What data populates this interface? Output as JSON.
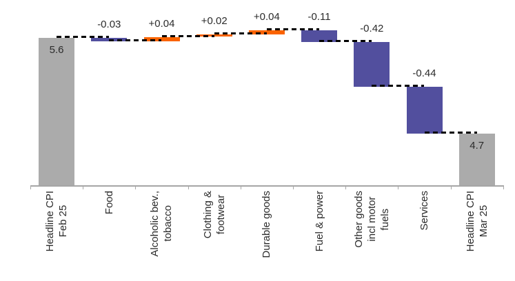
{
  "chart_data": {
    "type": "bar",
    "subtype": "waterfall",
    "title": "",
    "xlabel": "",
    "ylabel": "",
    "legend": false,
    "gridlines": false,
    "y_axis_visible": false,
    "start_value": 5.6,
    "end_value": 4.7,
    "categories": [
      {
        "label": "Headline CPI\nFeb 25",
        "role": "total",
        "value": 5.6,
        "display": "5.6"
      },
      {
        "label": "Food",
        "role": "delta",
        "value": -0.03,
        "display": "-0.03"
      },
      {
        "label": "Alcoholic bev.,\ntobacco",
        "role": "delta",
        "value": 0.04,
        "display": "+0.04"
      },
      {
        "label": "Clothing &\nfootwear",
        "role": "delta",
        "value": 0.02,
        "display": "+0.02"
      },
      {
        "label": "Durable goods",
        "role": "delta",
        "value": 0.04,
        "display": "+0.04"
      },
      {
        "label": "Fuel & power",
        "role": "delta",
        "value": -0.11,
        "display": "-0.11"
      },
      {
        "label": "Other goods\nincl motor\nfuels",
        "role": "delta",
        "value": -0.42,
        "display": "-0.42"
      },
      {
        "label": "Services",
        "role": "delta",
        "value": -0.44,
        "display": "-0.44"
      },
      {
        "label": "Headline CPI\nMar 25",
        "role": "total",
        "value": 4.7,
        "display": "4.7"
      }
    ],
    "colors": {
      "total": "#ABABAB",
      "increase": "#FA6300",
      "decrease": "#524F9E",
      "connector": "#000000",
      "axis": "#A6A6A6",
      "text": "#2B2B2B"
    }
  }
}
